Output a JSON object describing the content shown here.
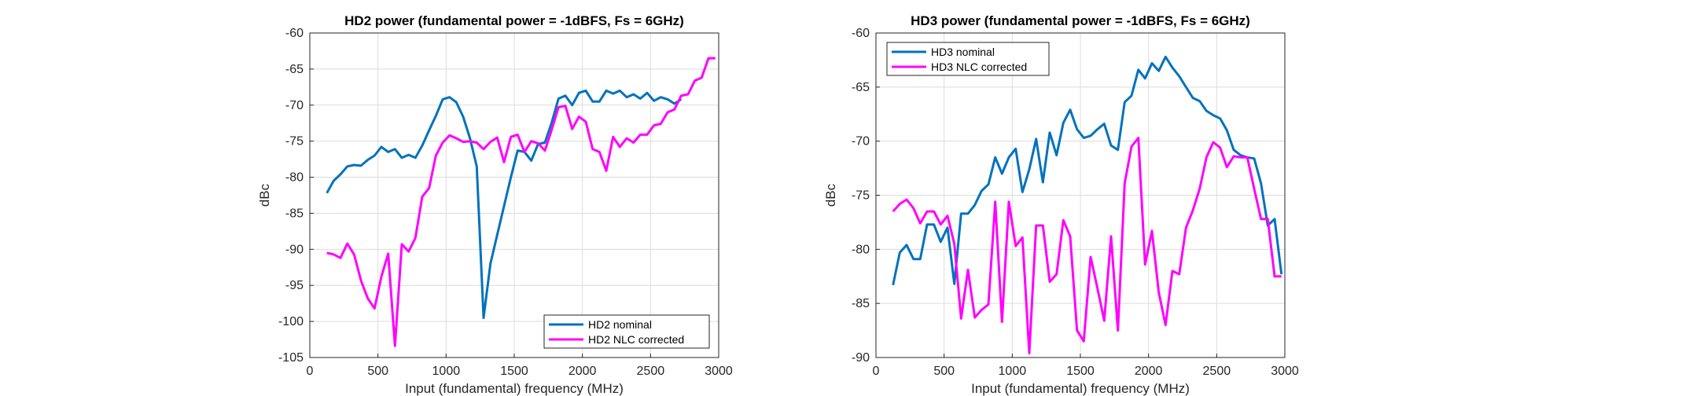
{
  "chart_data": [
    {
      "type": "line",
      "title": "HD2 power (fundamental power = -1dBFS, Fs = 6GHz)",
      "xlabel": "Input (fundamental) frequency (MHz)",
      "ylabel": "dBc",
      "xlim": [
        0,
        3000
      ],
      "ylim": [
        -105,
        -60
      ],
      "xticks": [
        0,
        500,
        1000,
        1500,
        2000,
        2500,
        3000
      ],
      "yticks": [
        -105,
        -100,
        -95,
        -90,
        -85,
        -80,
        -75,
        -70,
        -65,
        -60
      ],
      "grid": true,
      "legend_position": "bottom-right",
      "series": [
        {
          "name": "HD2 nominal",
          "color": "#0072BD",
          "x": [
            125,
            175,
            225,
            275,
            325,
            375,
            425,
            475,
            525,
            575,
            625,
            675,
            725,
            775,
            825,
            875,
            925,
            975,
            1025,
            1075,
            1125,
            1175,
            1225,
            1275,
            1325,
            1375,
            1425,
            1475,
            1525,
            1575,
            1625,
            1675,
            1725,
            1775,
            1825,
            1875,
            1925,
            1975,
            2025,
            2075,
            2125,
            2175,
            2225,
            2275,
            2325,
            2375,
            2425,
            2475,
            2525,
            2575,
            2625,
            2675,
            2725
          ],
          "y": [
            -82.2,
            -80.5,
            -79.6,
            -78.5,
            -78.3,
            -78.4,
            -77.6,
            -77.0,
            -75.8,
            -76.5,
            -76.1,
            -77.3,
            -76.9,
            -77.3,
            -75.6,
            -73.5,
            -71.5,
            -69.2,
            -68.9,
            -69.6,
            -71.6,
            -74.6,
            -78.5,
            -99.5,
            -92.0,
            -88.0,
            -84.0,
            -80.0,
            -76.3,
            -76.5,
            -77.7,
            -75.4,
            -75.2,
            -72.4,
            -69.1,
            -68.7,
            -70.0,
            -68.3,
            -68.0,
            -69.5,
            -69.5,
            -68.0,
            -68.4,
            -68.0,
            -68.9,
            -68.5,
            -69.1,
            -68.3,
            -69.4,
            -68.9,
            -69.2,
            -69.8,
            -69.2
          ]
        },
        {
          "name": "HD2 NLC corrected",
          "color": "#FF00FF",
          "x": [
            125,
            175,
            225,
            275,
            325,
            375,
            425,
            475,
            525,
            575,
            625,
            675,
            725,
            775,
            825,
            875,
            925,
            975,
            1025,
            1075,
            1125,
            1175,
            1225,
            1275,
            1325,
            1375,
            1425,
            1475,
            1525,
            1575,
            1625,
            1675,
            1725,
            1775,
            1825,
            1875,
            1925,
            1975,
            2025,
            2075,
            2125,
            2175,
            2225,
            2275,
            2325,
            2375,
            2425,
            2475,
            2525,
            2575,
            2625,
            2675,
            2725,
            2775,
            2825,
            2875,
            2925,
            2975
          ],
          "y": [
            -90.5,
            -90.7,
            -91.2,
            -89.2,
            -90.7,
            -94.3,
            -96.8,
            -98.2,
            -93.8,
            -90.6,
            -103.4,
            -89.3,
            -90.3,
            -88.4,
            -82.7,
            -81.5,
            -77.0,
            -75.2,
            -74.2,
            -74.6,
            -75.1,
            -75.0,
            -75.2,
            -76.1,
            -75.1,
            -74.5,
            -77.9,
            -74.4,
            -74.1,
            -76.5,
            -75.0,
            -75.3,
            -76.3,
            -73.4,
            -70.3,
            -70.1,
            -73.3,
            -71.6,
            -72.3,
            -76.1,
            -76.5,
            -79.1,
            -74.4,
            -75.8,
            -74.6,
            -75.2,
            -74.1,
            -74.1,
            -72.8,
            -72.6,
            -71.0,
            -70.6,
            -68.7,
            -68.5,
            -66.6,
            -66.2,
            -63.5,
            -63.5
          ]
        }
      ]
    },
    {
      "type": "line",
      "title": "HD3 power (fundamental power = -1dBFS, Fs = 6GHz)",
      "xlabel": "Input (fundamental) frequency (MHz)",
      "ylabel": "dBc",
      "xlim": [
        0,
        3000
      ],
      "ylim": [
        -90,
        -60
      ],
      "xticks": [
        0,
        500,
        1000,
        1500,
        2000,
        2500,
        3000
      ],
      "yticks": [
        -90,
        -85,
        -80,
        -75,
        -70,
        -65,
        -60
      ],
      "grid": true,
      "legend_position": "top-left",
      "series": [
        {
          "name": "HD3 nominal",
          "color": "#0072BD",
          "x": [
            125,
            175,
            225,
            275,
            325,
            375,
            425,
            475,
            525,
            575,
            625,
            675,
            725,
            775,
            825,
            875,
            925,
            975,
            1025,
            1075,
            1125,
            1175,
            1225,
            1275,
            1325,
            1375,
            1425,
            1475,
            1525,
            1575,
            1625,
            1675,
            1725,
            1775,
            1825,
            1875,
            1925,
            1975,
            2025,
            2075,
            2125,
            2175,
            2225,
            2275,
            2325,
            2375,
            2425,
            2475,
            2525,
            2575,
            2625,
            2675,
            2725,
            2775,
            2825,
            2875,
            2925,
            2975
          ],
          "y": [
            -83.3,
            -80.3,
            -79.6,
            -80.9,
            -80.9,
            -77.7,
            -77.7,
            -79.3,
            -78.0,
            -83.2,
            -76.7,
            -76.7,
            -75.9,
            -74.6,
            -74.0,
            -71.5,
            -73.0,
            -71.5,
            -70.7,
            -74.7,
            -72.6,
            -69.8,
            -73.8,
            -69.2,
            -71.3,
            -68.3,
            -67.1,
            -68.9,
            -69.7,
            -69.5,
            -68.9,
            -68.4,
            -70.4,
            -70.8,
            -66.4,
            -65.8,
            -63.4,
            -64.2,
            -62.8,
            -63.5,
            -62.2,
            -63.2,
            -64.0,
            -65.0,
            -66.0,
            -66.3,
            -67.2,
            -67.6,
            -67.9,
            -69.0,
            -70.8,
            -71.3,
            -71.5,
            -71.6,
            -73.9,
            -77.8,
            -77.2,
            -82.3
          ]
        },
        {
          "name": "HD3 NLC corrected",
          "color": "#FF00FF",
          "x": [
            125,
            175,
            225,
            275,
            325,
            375,
            425,
            475,
            525,
            575,
            625,
            675,
            725,
            775,
            825,
            875,
            925,
            975,
            1025,
            1075,
            1125,
            1175,
            1225,
            1275,
            1325,
            1375,
            1425,
            1475,
            1525,
            1575,
            1625,
            1675,
            1725,
            1775,
            1825,
            1875,
            1925,
            1975,
            2025,
            2075,
            2125,
            2175,
            2225,
            2275,
            2325,
            2375,
            2425,
            2475,
            2525,
            2575,
            2625,
            2675,
            2725,
            2775,
            2825,
            2875,
            2925,
            2975
          ],
          "y": [
            -76.5,
            -75.8,
            -75.4,
            -76.2,
            -77.6,
            -76.5,
            -76.5,
            -77.7,
            -76.9,
            -79.5,
            -86.4,
            -81.9,
            -86.3,
            -85.6,
            -85.1,
            -75.6,
            -86.7,
            -75.6,
            -79.7,
            -78.9,
            -89.6,
            -77.8,
            -77.8,
            -83.0,
            -82.3,
            -77.3,
            -78.8,
            -87.5,
            -88.5,
            -80.7,
            -83.6,
            -86.6,
            -78.8,
            -87.5,
            -73.9,
            -70.5,
            -69.7,
            -81.4,
            -78.3,
            -84.0,
            -87.0,
            -82.0,
            -82.3,
            -78.0,
            -76.4,
            -74.4,
            -71.5,
            -70.1,
            -70.6,
            -72.4,
            -71.4,
            -71.5,
            -71.5,
            -74.4,
            -77.2,
            -77.2,
            -82.5,
            -82.5
          ]
        }
      ]
    }
  ]
}
